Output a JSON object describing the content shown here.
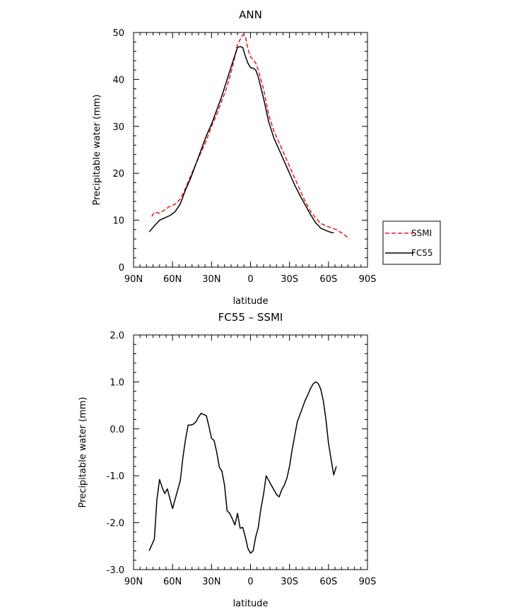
{
  "chart_data": [
    {
      "type": "line",
      "title": "ANN",
      "xlabel": "latitude",
      "ylabel": "Precipitable water (mm)",
      "xlim": [
        90,
        -90
      ],
      "ylim": [
        0,
        50
      ],
      "x_ticks": [
        90,
        60,
        30,
        0,
        -30,
        -60,
        -90
      ],
      "x_tick_labels": [
        "90N",
        "60N",
        "30N",
        "0",
        "30S",
        "60S",
        "90S"
      ],
      "y_ticks": [
        0,
        10,
        20,
        30,
        40,
        50
      ],
      "y_tick_labels": [
        "0",
        "10",
        "20",
        "30",
        "40",
        "50"
      ],
      "legend_position": "right",
      "series": [
        {
          "name": "SSMI",
          "color": "#e8141c",
          "dash": "dashed",
          "x": [
            76,
            74,
            70,
            66,
            62,
            58,
            54,
            50,
            46,
            42,
            38,
            34,
            30,
            26,
            22,
            18,
            14,
            10,
            6,
            4,
            2,
            0,
            -2,
            -4,
            -6,
            -10,
            -14,
            -18,
            -22,
            -26,
            -30,
            -34,
            -38,
            -42,
            -46,
            -50,
            -54,
            -58,
            -62,
            -66,
            -70,
            -74,
            -76
          ],
          "y": [
            10.8,
            11.7,
            11.5,
            12.2,
            13.0,
            13.4,
            14.5,
            16.8,
            19.5,
            22.0,
            24.5,
            27.0,
            30.0,
            32.5,
            35.5,
            38.5,
            42.5,
            47.5,
            49.5,
            49.3,
            46.5,
            44.8,
            44.2,
            43.5,
            42.0,
            38.0,
            32.5,
            29.0,
            26.5,
            24.0,
            21.5,
            19.0,
            16.5,
            14.0,
            12.0,
            10.5,
            9.3,
            8.8,
            8.4,
            8.0,
            7.3,
            6.5,
            6.0
          ]
        },
        {
          "name": "FC55",
          "color": "#000000",
          "dash": "solid",
          "x": [
            78,
            74,
            70,
            66,
            62,
            58,
            54,
            50,
            46,
            42,
            38,
            34,
            30,
            26,
            22,
            18,
            14,
            10,
            8,
            6,
            4,
            2,
            0,
            -2,
            -4,
            -6,
            -10,
            -14,
            -18,
            -22,
            -26,
            -30,
            -34,
            -38,
            -42,
            -46,
            -50,
            -54,
            -58,
            -62,
            -64
          ],
          "y": [
            7.5,
            8.8,
            10.0,
            10.5,
            11.0,
            11.8,
            13.5,
            16.5,
            19.0,
            22.0,
            25.0,
            28.0,
            30.5,
            33.5,
            36.5,
            40.0,
            43.5,
            46.8,
            47.0,
            46.8,
            45.0,
            43.5,
            42.5,
            42.4,
            42.0,
            40.5,
            36.0,
            31.0,
            27.5,
            25.0,
            22.5,
            20.0,
            17.5,
            15.3,
            13.3,
            11.3,
            9.5,
            8.3,
            7.8,
            7.4,
            7.3
          ]
        }
      ]
    },
    {
      "type": "line",
      "title": "FC55 – SSMI",
      "xlabel": "latitude",
      "ylabel": "Precipitable water (mm)",
      "xlim": [
        90,
        -90
      ],
      "ylim": [
        -3.0,
        2.0
      ],
      "x_ticks": [
        90,
        60,
        30,
        0,
        -30,
        -60,
        -90
      ],
      "x_tick_labels": [
        "90N",
        "60N",
        "30N",
        "0",
        "30S",
        "60S",
        "90S"
      ],
      "y_ticks": [
        -3.0,
        -2.0,
        -1.0,
        0.0,
        1.0,
        2.0
      ],
      "y_tick_labels": [
        "-3.0",
        "-2.0",
        "-1.0",
        "0.0",
        "1.0",
        "2.0"
      ],
      "series": [
        {
          "color": "#000000",
          "dash": "solid",
          "x": [
            78,
            74,
            72,
            70,
            68,
            66,
            64,
            60,
            58,
            56,
            54,
            52,
            50,
            48,
            46,
            44,
            42,
            40,
            38,
            34,
            32,
            30,
            28,
            26,
            24,
            22,
            20,
            18,
            16,
            14,
            12,
            10,
            8,
            6,
            4,
            2,
            0,
            -2,
            -4,
            -6,
            -8,
            -10,
            -12,
            -14,
            -16,
            -18,
            -20,
            -22,
            -24,
            -26,
            -28,
            -30,
            -32,
            -34,
            -36,
            -38,
            -40,
            -42,
            -44,
            -46,
            -48,
            -50,
            -52,
            -54,
            -56,
            -58,
            -60,
            -62,
            -64,
            -66
          ],
          "y": [
            -2.6,
            -2.35,
            -1.5,
            -1.08,
            -1.25,
            -1.38,
            -1.28,
            -1.7,
            -1.5,
            -1.3,
            -1.1,
            -0.6,
            -0.22,
            0.08,
            0.08,
            0.1,
            0.15,
            0.25,
            0.33,
            0.28,
            0.05,
            -0.2,
            -0.25,
            -0.5,
            -0.82,
            -0.9,
            -1.2,
            -1.75,
            -1.8,
            -1.92,
            -2.05,
            -1.8,
            -2.12,
            -2.1,
            -2.3,
            -2.55,
            -2.65,
            -2.6,
            -2.3,
            -2.1,
            -1.7,
            -1.4,
            -1.0,
            -1.1,
            -1.2,
            -1.3,
            -1.4,
            -1.45,
            -1.3,
            -1.2,
            -1.05,
            -0.8,
            -0.45,
            -0.15,
            0.15,
            0.3,
            0.45,
            0.6,
            0.72,
            0.85,
            0.95,
            1.0,
            0.97,
            0.85,
            0.6,
            0.2,
            -0.3,
            -0.65,
            -0.98,
            -0.8
          ]
        }
      ]
    }
  ]
}
